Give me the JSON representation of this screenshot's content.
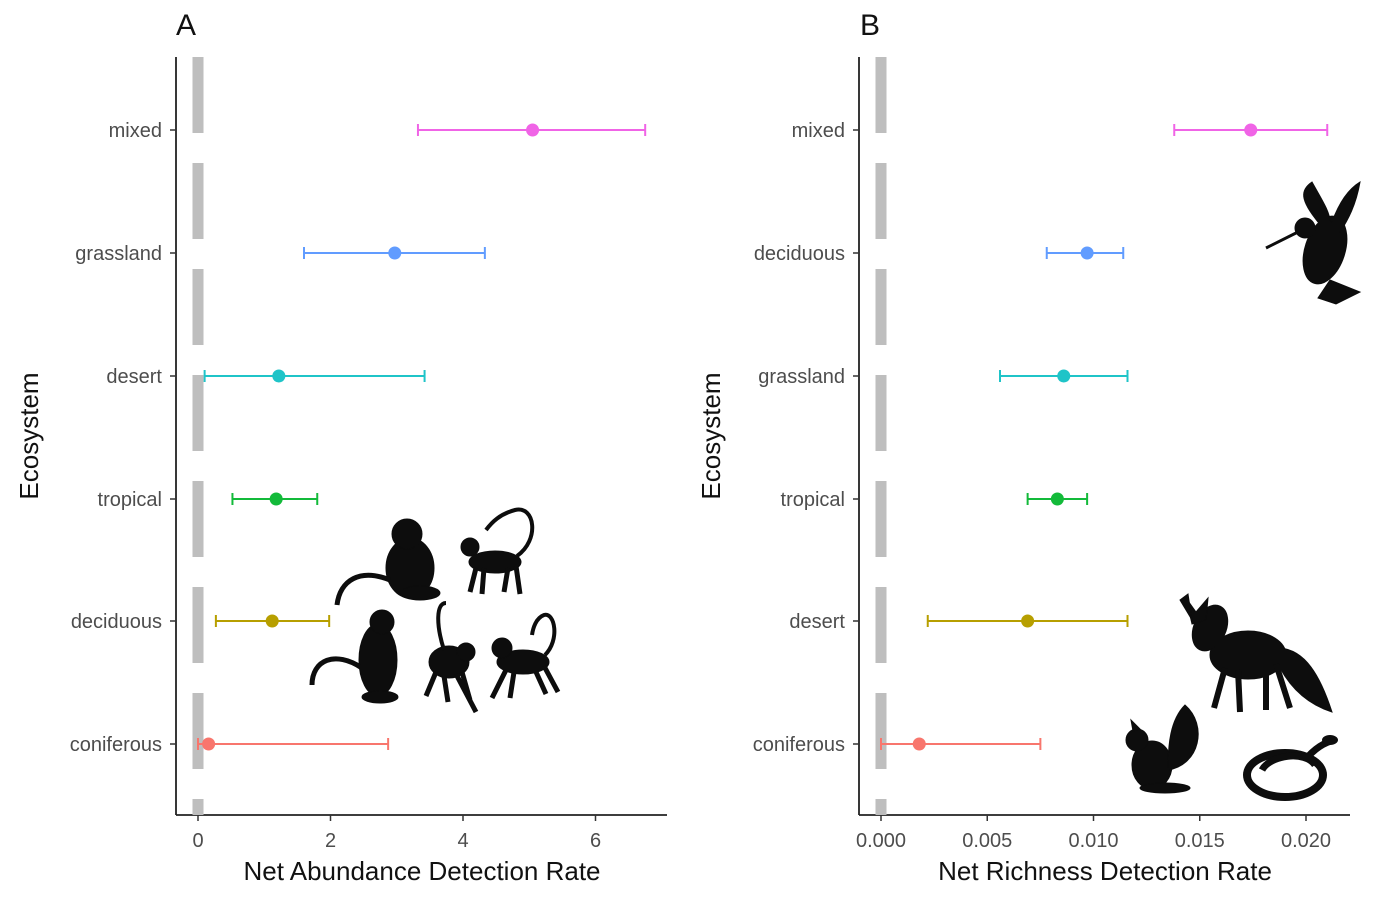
{
  "chart_data": [
    {
      "type": "scatter",
      "panel_label": "A",
      "xlabel": "Net Abundance Detection Rate",
      "ylabel": "Ecosystem",
      "xlim": [
        -0.35,
        7.1
      ],
      "xticks": [
        0,
        2,
        4,
        6
      ],
      "xtick_labels": [
        "0",
        "2",
        "4",
        "6"
      ],
      "reference_line": 0,
      "categories": [
        "mixed",
        "grassland",
        "desert",
        "tropical",
        "deciduous",
        "coniferous"
      ],
      "estimates": [
        5.05,
        2.97,
        1.22,
        1.18,
        1.12,
        0.16
      ],
      "lower": [
        3.32,
        1.6,
        0.1,
        0.52,
        0.27,
        0.0
      ],
      "upper": [
        6.75,
        4.33,
        3.42,
        1.8,
        1.98,
        2.87
      ],
      "colors": [
        "#F064E6",
        "#619CFF",
        "#1FC4C8",
        "#13BA3A",
        "#B79F00",
        "#F8766D"
      ],
      "grid": false,
      "legend": "none"
    },
    {
      "type": "scatter",
      "panel_label": "B",
      "xlabel": "Net Richness Detection Rate",
      "ylabel": "Ecosystem",
      "xlim": [
        -0.001,
        0.022
      ],
      "xticks": [
        0.0,
        0.005,
        0.01,
        0.015,
        0.02
      ],
      "xtick_labels": [
        "0.000",
        "0.005",
        "0.010",
        "0.015",
        "0.020"
      ],
      "reference_line": 0,
      "categories": [
        "mixed",
        "deciduous",
        "grassland",
        "tropical",
        "desert",
        "coniferous"
      ],
      "estimates": [
        0.0174,
        0.0097,
        0.0086,
        0.0083,
        0.0069,
        0.0018
      ],
      "lower": [
        0.0138,
        0.0078,
        0.0056,
        0.0069,
        0.0022,
        0.0
      ],
      "upper": [
        0.021,
        0.0114,
        0.0116,
        0.0097,
        0.0116,
        0.0075
      ],
      "colors": [
        "#F064E6",
        "#619CFF",
        "#1FC4C8",
        "#13BA3A",
        "#B79F00",
        "#F8766D"
      ],
      "grid": false,
      "legend": "none"
    }
  ],
  "silhouettes": {
    "A": [
      "primate-icon",
      "primate-icon",
      "primate-icon",
      "primate-icon",
      "primate-icon"
    ],
    "B": [
      "hummingbird-icon",
      "fox-icon",
      "squirrel-icon",
      "snake-icon"
    ]
  }
}
